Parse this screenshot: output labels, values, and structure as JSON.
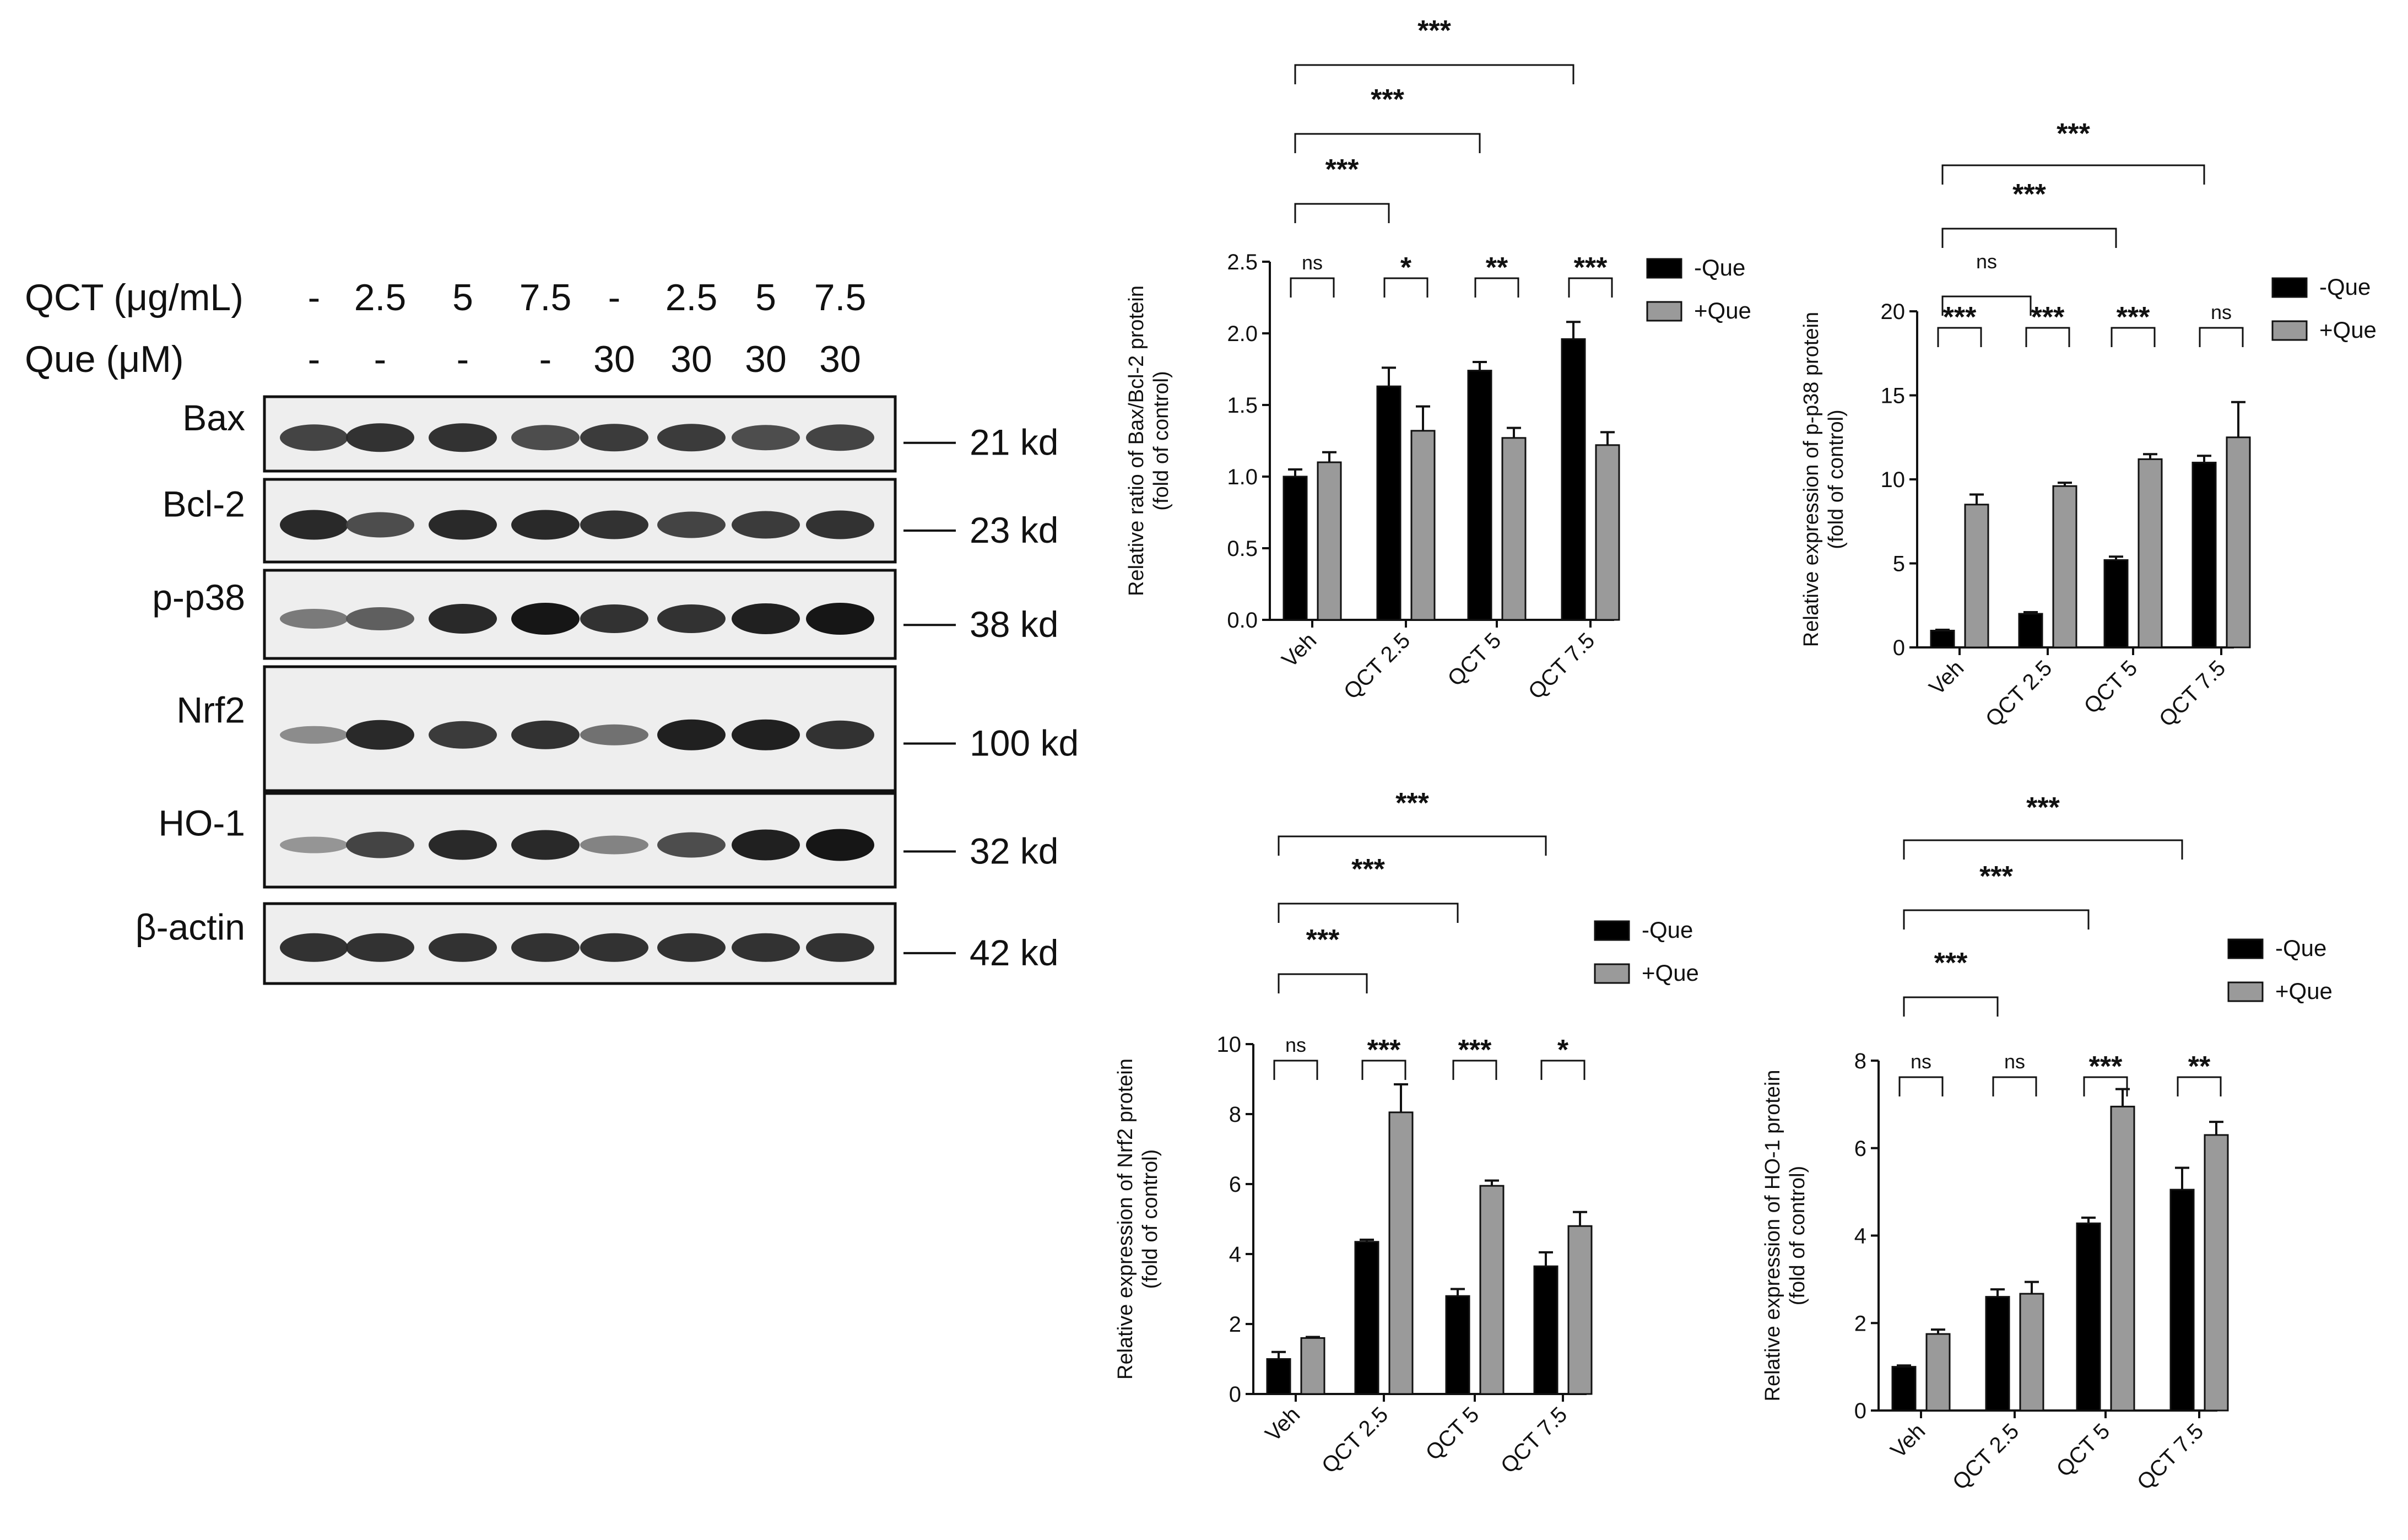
{
  "blot": {
    "qct_label": "QCT (μg/mL)",
    "qct_values": [
      "-",
      "2.5",
      "5",
      "7.5",
      "-",
      "2.5",
      "5",
      "7.5"
    ],
    "que_label": "Que  (μM)",
    "que_values": [
      "-",
      "-",
      "-",
      "-",
      "30",
      "30",
      "30",
      "30"
    ],
    "rows": [
      {
        "name": "Bax",
        "size": "21 kd",
        "intensity": [
          0.75,
          0.85,
          0.85,
          0.7,
          0.8,
          0.8,
          0.7,
          0.75
        ]
      },
      {
        "name": "Bcl-2",
        "size": "23 kd",
        "intensity": [
          0.9,
          0.7,
          0.9,
          0.9,
          0.85,
          0.75,
          0.8,
          0.85
        ]
      },
      {
        "name": "p-p38",
        "size": "38 kd",
        "intensity": [
          0.45,
          0.6,
          0.9,
          1.0,
          0.85,
          0.85,
          0.95,
          1.0
        ]
      },
      {
        "name": "Nrf2",
        "size": "100 kd",
        "intensity": [
          0.35,
          0.9,
          0.8,
          0.85,
          0.5,
          0.95,
          0.95,
          0.85
        ]
      },
      {
        "name": "HO-1",
        "size": "32 kd",
        "intensity": [
          0.3,
          0.75,
          0.9,
          0.9,
          0.4,
          0.7,
          0.95,
          1.0
        ]
      },
      {
        "name": "β-actin",
        "size": "42 kd",
        "intensity": [
          0.85,
          0.85,
          0.85,
          0.85,
          0.85,
          0.85,
          0.85,
          0.85
        ]
      }
    ]
  },
  "colors": {
    "minus_que": "#000000",
    "plus_que": "#9a9a9a"
  },
  "chart_data": [
    {
      "type": "bar",
      "ylabel_line1": "Relative ratio of Bax/Bcl-2 protein",
      "ylabel_line2": "(fold of control)",
      "categories": [
        "Veh",
        "QCT 2.5",
        "QCT 5",
        "QCT 7.5"
      ],
      "ylim": [
        0,
        2.5
      ],
      "yticks": [
        "0.0",
        "0.5",
        "1.0",
        "1.5",
        "2.0",
        "2.5"
      ],
      "series": [
        {
          "name": "-Que",
          "values": [
            1.0,
            1.63,
            1.74,
            1.96
          ],
          "errors": [
            0.05,
            0.13,
            0.06,
            0.12
          ]
        },
        {
          "name": "+Que",
          "values": [
            1.1,
            1.32,
            1.27,
            1.22
          ],
          "errors": [
            0.07,
            0.17,
            0.07,
            0.09
          ]
        }
      ],
      "pair_sig": [
        "ns",
        "*",
        "**",
        "***"
      ],
      "bracket_sig": [
        "***",
        "***",
        "***"
      ],
      "legend": [
        "-Que",
        "+Que"
      ]
    },
    {
      "type": "bar",
      "ylabel_line1": "Relative expression of p-p38 protein",
      "ylabel_line2": "(fold of control)",
      "categories": [
        "Veh",
        "QCT 2.5",
        "QCT 5",
        "QCT 7.5"
      ],
      "ylim": [
        0,
        20
      ],
      "yticks": [
        "0",
        "5",
        "10",
        "15",
        "20"
      ],
      "series": [
        {
          "name": "-Que",
          "values": [
            1.0,
            2.0,
            5.2,
            11.0
          ],
          "errors": [
            0.05,
            0.1,
            0.2,
            0.4
          ]
        },
        {
          "name": "+Que",
          "values": [
            8.5,
            9.6,
            11.2,
            12.5
          ],
          "errors": [
            0.6,
            0.2,
            0.3,
            2.1
          ]
        }
      ],
      "pair_sig": [
        "***",
        "***",
        "***",
        "ns"
      ],
      "bracket_sig": [
        "ns",
        "***",
        "***"
      ],
      "legend": [
        "-Que",
        "+Que"
      ]
    },
    {
      "type": "bar",
      "ylabel_line1": "Relative expression of Nrf2 protein",
      "ylabel_line2": "(fold of control)",
      "categories": [
        "Veh",
        "QCT 2.5",
        "QCT 5",
        "QCT 7.5"
      ],
      "ylim": [
        0,
        10
      ],
      "yticks": [
        "0",
        "2",
        "4",
        "6",
        "8",
        "10"
      ],
      "series": [
        {
          "name": "-Que",
          "values": [
            1.0,
            4.35,
            2.8,
            3.65
          ],
          "errors": [
            0.2,
            0.06,
            0.2,
            0.4
          ]
        },
        {
          "name": "+Que",
          "values": [
            1.6,
            8.05,
            5.95,
            4.8
          ],
          "errors": [
            0.03,
            0.8,
            0.15,
            0.4
          ]
        }
      ],
      "pair_sig": [
        "ns",
        "***",
        "***",
        "*"
      ],
      "bracket_sig": [
        "***",
        "***",
        "***"
      ],
      "legend": [
        "-Que",
        "+Que"
      ]
    },
    {
      "type": "bar",
      "ylabel_line1": "Relative expression of HO-1 protein",
      "ylabel_line2": "(fold of control)",
      "categories": [
        "Veh",
        "QCT 2.5",
        "QCT 5",
        "QCT 7.5"
      ],
      "ylim": [
        0,
        8
      ],
      "yticks": [
        "0",
        "2",
        "4",
        "6",
        "8"
      ],
      "series": [
        {
          "name": "-Que",
          "values": [
            1.0,
            2.6,
            4.28,
            5.05
          ],
          "errors": [
            0.03,
            0.17,
            0.13,
            0.5
          ]
        },
        {
          "name": "+Que",
          "values": [
            1.75,
            2.67,
            6.95,
            6.3
          ],
          "errors": [
            0.1,
            0.27,
            0.4,
            0.3
          ]
        }
      ],
      "pair_sig": [
        "ns",
        "ns",
        "***",
        "**"
      ],
      "bracket_sig": [
        "***",
        "***",
        "***"
      ],
      "legend": [
        "-Que",
        "+Que"
      ]
    }
  ]
}
